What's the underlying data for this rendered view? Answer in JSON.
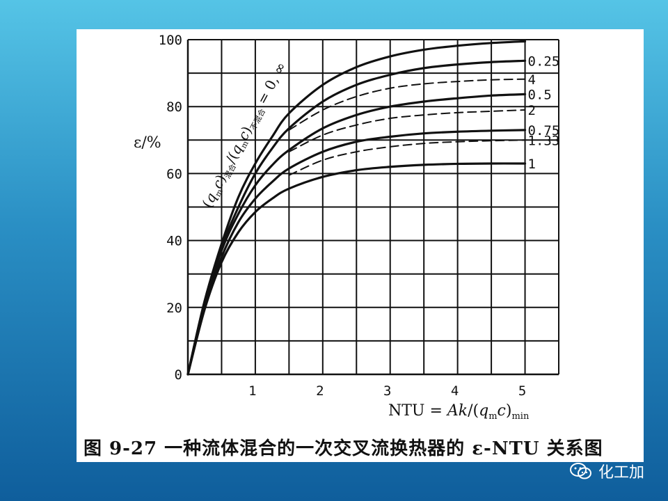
{
  "caption": "图 9-27  一种流体混合的一次交叉流换热器的 ε-NTU 关系图",
  "watermark": {
    "text": "化工加",
    "icon": "wechat-icon"
  },
  "chart_data": {
    "type": "line",
    "title": "",
    "xlabel": "NTU = Ak/(q_m c)_min",
    "ylabel": "ε/%",
    "xlim": [
      0,
      5.5
    ],
    "ylim": [
      0,
      100
    ],
    "xticks": [
      1,
      2,
      3,
      4,
      5
    ],
    "yticks": [
      0,
      20,
      40,
      60,
      80,
      100
    ],
    "grid": true,
    "family_label": "(q_m c)混合/(q_m c)不混合 = 0, ∞",
    "series": [
      {
        "name": "0, ∞",
        "style": "solid",
        "x": [
          0,
          0.25,
          0.5,
          0.75,
          1.0,
          1.25,
          1.5,
          2.0,
          2.5,
          3.0,
          3.5,
          4.0,
          4.5,
          5.0
        ],
        "y": [
          0,
          22,
          39,
          53,
          63,
          71,
          78,
          86.5,
          91.8,
          95,
          97,
          98.2,
          99,
          99.5
        ]
      },
      {
        "name": "0.25",
        "style": "solid",
        "x": [
          0,
          0.25,
          0.5,
          0.75,
          1.0,
          1.25,
          1.5,
          2.0,
          2.5,
          3.0,
          3.5,
          4.0,
          4.5,
          5.0
        ],
        "y": [
          0,
          22,
          38,
          50,
          60,
          67.5,
          73.5,
          81.5,
          86.5,
          89.5,
          91.5,
          92.6,
          93.3,
          93.7
        ]
      },
      {
        "name": "4",
        "style": "dashed",
        "x": [
          1.5,
          2.0,
          2.5,
          3.0,
          3.5,
          4.0,
          4.5,
          5.0
        ],
        "y": [
          73,
          79,
          83,
          85.5,
          86.8,
          87.5,
          88,
          88.2
        ]
      },
      {
        "name": "0.5",
        "style": "solid",
        "x": [
          0,
          0.25,
          0.5,
          0.75,
          1.0,
          1.25,
          1.5,
          2.0,
          2.5,
          3.0,
          3.5,
          4.0,
          4.5,
          5.0
        ],
        "y": [
          0,
          21,
          37,
          48,
          56.5,
          62.5,
          67,
          73.5,
          77.5,
          80,
          81.5,
          82.5,
          83.3,
          83.7
        ]
      },
      {
        "name": "2",
        "style": "dashed",
        "x": [
          1.5,
          2.0,
          2.5,
          3.0,
          3.5,
          4.0,
          4.5,
          5.0
        ],
        "y": [
          66.5,
          71.5,
          74.5,
          76.5,
          77.5,
          78.2,
          78.6,
          79
        ]
      },
      {
        "name": "0.75",
        "style": "solid",
        "x": [
          0,
          0.25,
          0.5,
          0.75,
          1.0,
          1.25,
          1.5,
          2.0,
          2.5,
          3.0,
          3.5,
          4.0,
          4.5,
          5.0
        ],
        "y": [
          0,
          20,
          35,
          45.5,
          52.5,
          57.5,
          61.5,
          66.5,
          69.5,
          71,
          72,
          72.5,
          72.8,
          73
        ]
      },
      {
        "name": "1.33",
        "style": "dashed",
        "x": [
          1.5,
          2.0,
          2.5,
          3.0,
          3.5,
          4.0,
          4.5,
          5.0
        ],
        "y": [
          59.5,
          64,
          66.5,
          68,
          69,
          69.5,
          69.8,
          70
        ]
      },
      {
        "name": "1",
        "style": "solid",
        "x": [
          0,
          0.25,
          0.5,
          0.75,
          1.0,
          1.25,
          1.5,
          2.0,
          2.5,
          3.0,
          3.5,
          4.0,
          4.5,
          5.0
        ],
        "y": [
          0,
          19.5,
          33.5,
          42.5,
          48.5,
          52.5,
          55.5,
          59,
          61,
          62,
          62.6,
          62.9,
          63,
          63
        ]
      }
    ],
    "colors": {
      "ink": "#111111",
      "background": "#ffffff"
    }
  }
}
